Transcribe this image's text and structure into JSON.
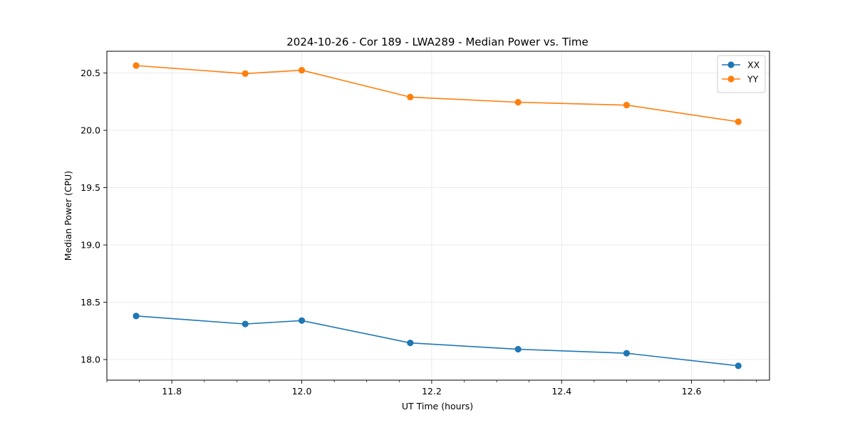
{
  "chart_data": {
    "type": "line",
    "title": "2024-10-26 - Cor 189 - LWA289 - Median Power vs. Time",
    "xlabel": "UT Time (hours)",
    "ylabel": "Median Power (CPU)",
    "xlim": [
      11.7,
      12.72
    ],
    "ylim": [
      17.82,
      20.69
    ],
    "xticks": [
      11.8,
      12.0,
      12.2,
      12.4,
      12.6
    ],
    "xtick_labels": [
      "11.8",
      "12.0",
      "12.2",
      "12.4",
      "12.6"
    ],
    "xminor_step": 0.05,
    "yticks": [
      18.0,
      18.5,
      19.0,
      19.5,
      20.0,
      20.5
    ],
    "ytick_labels": [
      "18.0",
      "18.5",
      "19.0",
      "19.5",
      "20.0",
      "20.5"
    ],
    "grid": true,
    "legend_position": "top-right",
    "x": [
      11.745,
      11.913,
      12.0,
      12.167,
      12.333,
      12.5,
      12.672
    ],
    "series": [
      {
        "name": "XX",
        "color": "#1f77b4",
        "values": [
          18.38,
          18.31,
          18.34,
          18.145,
          18.09,
          18.055,
          17.945
        ]
      },
      {
        "name": "YY",
        "color": "#ff7f0e",
        "values": [
          20.565,
          20.495,
          20.525,
          20.29,
          20.245,
          20.22,
          20.075
        ]
      }
    ]
  }
}
